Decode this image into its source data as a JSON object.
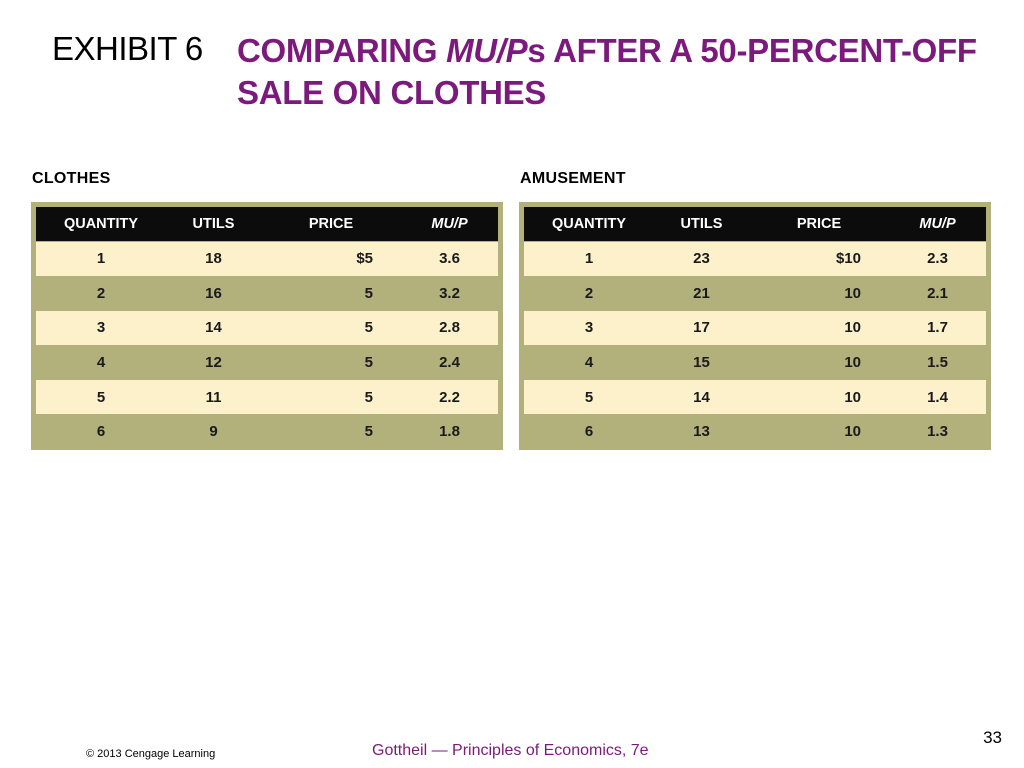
{
  "exhibit_label": "EXHIBIT 6",
  "title": {
    "part1": "COMPARING ",
    "part2_italic": "MU/P",
    "part3": "s AFTER A 50-PERCENT-OFF SALE ON CLOTHES"
  },
  "tables": [
    {
      "heading": "CLOTHES",
      "columns": [
        "QUANTITY",
        "UTILS",
        "PRICE",
        "MU/P"
      ],
      "rows": [
        [
          "1",
          "18",
          "$5",
          "3.6"
        ],
        [
          "2",
          "16",
          "5",
          "3.2"
        ],
        [
          "3",
          "14",
          "5",
          "2.8"
        ],
        [
          "4",
          "12",
          "5",
          "2.4"
        ],
        [
          "5",
          "11",
          "5",
          "2.2"
        ],
        [
          "6",
          "9",
          "5",
          "1.8"
        ]
      ]
    },
    {
      "heading": "AMUSEMENT",
      "columns": [
        "QUANTITY",
        "UTILS",
        "PRICE",
        "MU/P"
      ],
      "rows": [
        [
          "1",
          "23",
          "$10",
          "2.3"
        ],
        [
          "2",
          "21",
          "10",
          "2.1"
        ],
        [
          "3",
          "17",
          "10",
          "1.7"
        ],
        [
          "4",
          "15",
          "10",
          "1.5"
        ],
        [
          "5",
          "14",
          "10",
          "1.4"
        ],
        [
          "6",
          "13",
          "10",
          "1.3"
        ]
      ]
    }
  ],
  "page_number": "33",
  "copyright": "© 2013 Cengage Learning",
  "footer_book": "Gottheil — Principles of Economics, 7e",
  "colors": {
    "title": "#7b1a7c",
    "header_bg": "#0c0c0c",
    "light_row": "#fdf1cc",
    "dark_row": "#b2b07b"
  }
}
